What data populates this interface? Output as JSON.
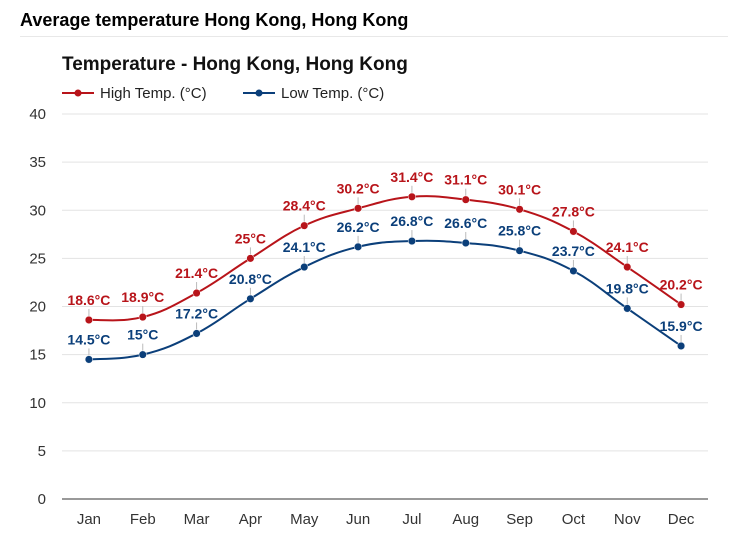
{
  "page": {
    "title": "Average temperature Hong Kong, Hong Kong"
  },
  "chart_data": {
    "type": "line",
    "title": "Temperature - Hong Kong, Hong Kong",
    "xlabel": "",
    "ylabel": "",
    "categories": [
      "Jan",
      "Feb",
      "Mar",
      "Apr",
      "May",
      "Jun",
      "Jul",
      "Aug",
      "Sep",
      "Oct",
      "Nov",
      "Dec"
    ],
    "ylim": [
      0,
      40
    ],
    "yticks": [
      0,
      5,
      10,
      15,
      20,
      25,
      30,
      35,
      40
    ],
    "grid": true,
    "legend_position": "top-left",
    "series": [
      {
        "name": "High Temp. (°C)",
        "color": "#b8141a",
        "values": [
          18.6,
          18.9,
          21.4,
          25,
          28.4,
          30.2,
          31.4,
          31.1,
          30.1,
          27.8,
          24.1,
          20.2
        ],
        "labels": [
          "18.6°C",
          "18.9°C",
          "21.4°C",
          "25°C",
          "28.4°C",
          "30.2°C",
          "31.4°C",
          "31.1°C",
          "30.1°C",
          "27.8°C",
          "24.1°C",
          "20.2°C"
        ]
      },
      {
        "name": "Low Temp. (°C)",
        "color": "#0b3f7a",
        "values": [
          14.5,
          15,
          17.2,
          20.8,
          24.1,
          26.2,
          26.8,
          26.6,
          25.8,
          23.7,
          19.8,
          15.9
        ],
        "labels": [
          "14.5°C",
          "15°C",
          "17.2°C",
          "20.8°C",
          "24.1°C",
          "26.2°C",
          "26.8°C",
          "26.6°C",
          "25.8°C",
          "23.7°C",
          "19.8°C",
          "15.9°C"
        ]
      }
    ]
  }
}
